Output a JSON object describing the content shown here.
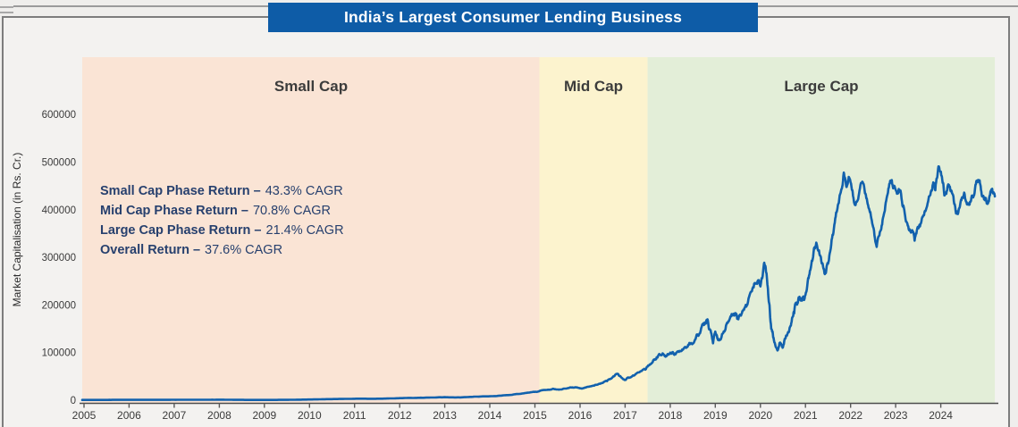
{
  "page": {
    "title_banner": "India’s Largest Consumer Lending Business"
  },
  "chart_data": {
    "type": "line",
    "title": "India’s Largest Consumer Lending Business",
    "xlabel": "",
    "ylabel": "Market Capitalisation (in Rs. Cr.)",
    "xlim": [
      2005,
      2025.2
    ],
    "ylim": [
      0,
      722000
    ],
    "grid": false,
    "legend": "none",
    "x_ticks": [
      2005,
      2006,
      2007,
      2008,
      2009,
      2010,
      2011,
      2012,
      2013,
      2014,
      2015,
      2016,
      2017,
      2018,
      2019,
      2020,
      2021,
      2022,
      2023,
      2024
    ],
    "y_ticks": [
      0,
      100000,
      200000,
      300000,
      400000,
      500000,
      600000
    ],
    "line_color": "#1261ad",
    "phases": [
      {
        "label": "Small Cap",
        "start": 2005.0,
        "end": 2015.1,
        "color": "#fae4d5"
      },
      {
        "label": "Mid Cap",
        "start": 2015.1,
        "end": 2017.5,
        "color": "#fcf3ce"
      },
      {
        "label": "Large Cap",
        "start": 2017.5,
        "end": 2025.2,
        "color": "#e3eed8"
      }
    ],
    "annotations": [
      {
        "label": "Small Cap Phase Return –",
        "value": "43.3% CAGR"
      },
      {
        "label": "Mid Cap Phase Return –",
        "value": "70.8% CAGR"
      },
      {
        "label": "Large Cap Phase Return –",
        "value": "21.4% CAGR"
      },
      {
        "label": "Overall Return –",
        "value": "37.6% CAGR"
      }
    ],
    "series": [
      {
        "name": "Market Capitalisation (in Rs. Cr.)",
        "points": [
          [
            2005.0,
            600
          ],
          [
            2005.25,
            620
          ],
          [
            2005.5,
            650
          ],
          [
            2005.75,
            680
          ],
          [
            2006.0,
            720
          ],
          [
            2006.25,
            750
          ],
          [
            2006.5,
            760
          ],
          [
            2006.75,
            800
          ],
          [
            2007.0,
            850
          ],
          [
            2007.25,
            900
          ],
          [
            2007.5,
            950
          ],
          [
            2007.75,
            1000
          ],
          [
            2008.0,
            1100
          ],
          [
            2008.25,
            900
          ],
          [
            2008.5,
            700
          ],
          [
            2008.75,
            550
          ],
          [
            2009.0,
            500
          ],
          [
            2009.25,
            600
          ],
          [
            2009.5,
            800
          ],
          [
            2009.75,
            1100
          ],
          [
            2010.0,
            1500
          ],
          [
            2010.25,
            1900
          ],
          [
            2010.5,
            2300
          ],
          [
            2010.75,
            2700
          ],
          [
            2011.0,
            3000
          ],
          [
            2011.25,
            3200
          ],
          [
            2011.5,
            3100
          ],
          [
            2011.75,
            3600
          ],
          [
            2012.0,
            4300
          ],
          [
            2012.25,
            4800
          ],
          [
            2012.5,
            5100
          ],
          [
            2012.75,
            5600
          ],
          [
            2013.0,
            6300
          ],
          [
            2013.25,
            5900
          ],
          [
            2013.5,
            6600
          ],
          [
            2013.75,
            7400
          ],
          [
            2014.0,
            8300
          ],
          [
            2014.25,
            9600
          ],
          [
            2014.5,
            11500
          ],
          [
            2014.75,
            14500
          ],
          [
            2015.0,
            17500
          ],
          [
            2015.1,
            19000
          ],
          [
            2015.25,
            21500
          ],
          [
            2015.4,
            24000
          ],
          [
            2015.55,
            22500
          ],
          [
            2015.7,
            24500
          ],
          [
            2015.85,
            26500
          ],
          [
            2016.0,
            25000
          ],
          [
            2016.15,
            27500
          ],
          [
            2016.3,
            30500
          ],
          [
            2016.45,
            34500
          ],
          [
            2016.6,
            40000
          ],
          [
            2016.72,
            48000
          ],
          [
            2016.8,
            55000
          ],
          [
            2016.88,
            51000
          ],
          [
            2017.0,
            42500
          ],
          [
            2017.1,
            47500
          ],
          [
            2017.25,
            56000
          ],
          [
            2017.4,
            64500
          ],
          [
            2017.5,
            70500
          ],
          [
            2017.6,
            79000
          ],
          [
            2017.7,
            90000
          ],
          [
            2017.78,
            95500
          ],
          [
            2017.88,
            92500
          ],
          [
            2017.95,
            97000
          ],
          [
            2018.05,
            101000
          ],
          [
            2018.12,
            96500
          ],
          [
            2018.22,
            103500
          ],
          [
            2018.35,
            110000
          ],
          [
            2018.45,
            119000
          ],
          [
            2018.55,
            127000
          ],
          [
            2018.65,
            140000
          ],
          [
            2018.75,
            158000
          ],
          [
            2018.82,
            168000
          ],
          [
            2018.88,
            149000
          ],
          [
            2018.95,
            119500
          ],
          [
            2019.0,
            144000
          ],
          [
            2019.06,
            126500
          ],
          [
            2019.15,
            139000
          ],
          [
            2019.25,
            160000
          ],
          [
            2019.35,
            176000
          ],
          [
            2019.45,
            183000
          ],
          [
            2019.52,
            174000
          ],
          [
            2019.6,
            187000
          ],
          [
            2019.7,
            199000
          ],
          [
            2019.8,
            228000
          ],
          [
            2019.9,
            246000
          ],
          [
            2020.0,
            239000
          ],
          [
            2020.08,
            287000
          ],
          [
            2020.13,
            268000
          ],
          [
            2020.18,
            215000
          ],
          [
            2020.24,
            150000
          ],
          [
            2020.3,
            126000
          ],
          [
            2020.38,
            104500
          ],
          [
            2020.44,
            121000
          ],
          [
            2020.5,
            111000
          ],
          [
            2020.58,
            136000
          ],
          [
            2020.65,
            152000
          ],
          [
            2020.72,
            176000
          ],
          [
            2020.78,
            203000
          ],
          [
            2020.85,
            216000
          ],
          [
            2020.92,
            209000
          ],
          [
            2021.0,
            221000
          ],
          [
            2021.08,
            262000
          ],
          [
            2021.16,
            296000
          ],
          [
            2021.24,
            331000
          ],
          [
            2021.32,
            304000
          ],
          [
            2021.4,
            276000
          ],
          [
            2021.46,
            272000
          ],
          [
            2021.54,
            309000
          ],
          [
            2021.62,
            352000
          ],
          [
            2021.7,
            398000
          ],
          [
            2021.78,
            436000
          ],
          [
            2021.85,
            478000
          ],
          [
            2021.9,
            452000
          ],
          [
            2021.96,
            469000
          ],
          [
            2022.04,
            441000
          ],
          [
            2022.1,
            410000
          ],
          [
            2022.18,
            429000
          ],
          [
            2022.26,
            459000
          ],
          [
            2022.34,
            431000
          ],
          [
            2022.42,
            399000
          ],
          [
            2022.5,
            364000
          ],
          [
            2022.58,
            322000
          ],
          [
            2022.66,
            355000
          ],
          [
            2022.74,
            391000
          ],
          [
            2022.82,
            432000
          ],
          [
            2022.9,
            461000
          ],
          [
            2022.96,
            446000
          ],
          [
            2023.04,
            434000
          ],
          [
            2023.1,
            441000
          ],
          [
            2023.18,
            405000
          ],
          [
            2023.26,
            371000
          ],
          [
            2023.34,
            352000
          ],
          [
            2023.42,
            335000
          ],
          [
            2023.5,
            362000
          ],
          [
            2023.58,
            381000
          ],
          [
            2023.66,
            397000
          ],
          [
            2023.74,
            428000
          ],
          [
            2023.82,
            452000
          ],
          [
            2023.88,
            441000
          ],
          [
            2023.95,
            491000
          ],
          [
            2024.02,
            471000
          ],
          [
            2024.08,
            430000
          ],
          [
            2024.15,
            448000
          ],
          [
            2024.22,
            439000
          ],
          [
            2024.3,
            412000
          ],
          [
            2024.38,
            391000
          ],
          [
            2024.45,
            421000
          ],
          [
            2024.52,
            436000
          ],
          [
            2024.6,
            411000
          ],
          [
            2024.68,
            426000
          ],
          [
            2024.76,
            444000
          ],
          [
            2024.84,
            461000
          ],
          [
            2024.9,
            438000
          ],
          [
            2024.97,
            421000
          ],
          [
            2025.05,
            414000
          ],
          [
            2025.12,
            442000
          ],
          [
            2025.2,
            428000
          ]
        ]
      }
    ]
  },
  "colors": {
    "banner_bg": "#0e5ca7",
    "banner_text": "#ffffff",
    "annotation_text": "#27406e",
    "phase_label_text": "#3c3c3c",
    "axis_text": "#3a3a3a",
    "line": "#1261ad"
  }
}
